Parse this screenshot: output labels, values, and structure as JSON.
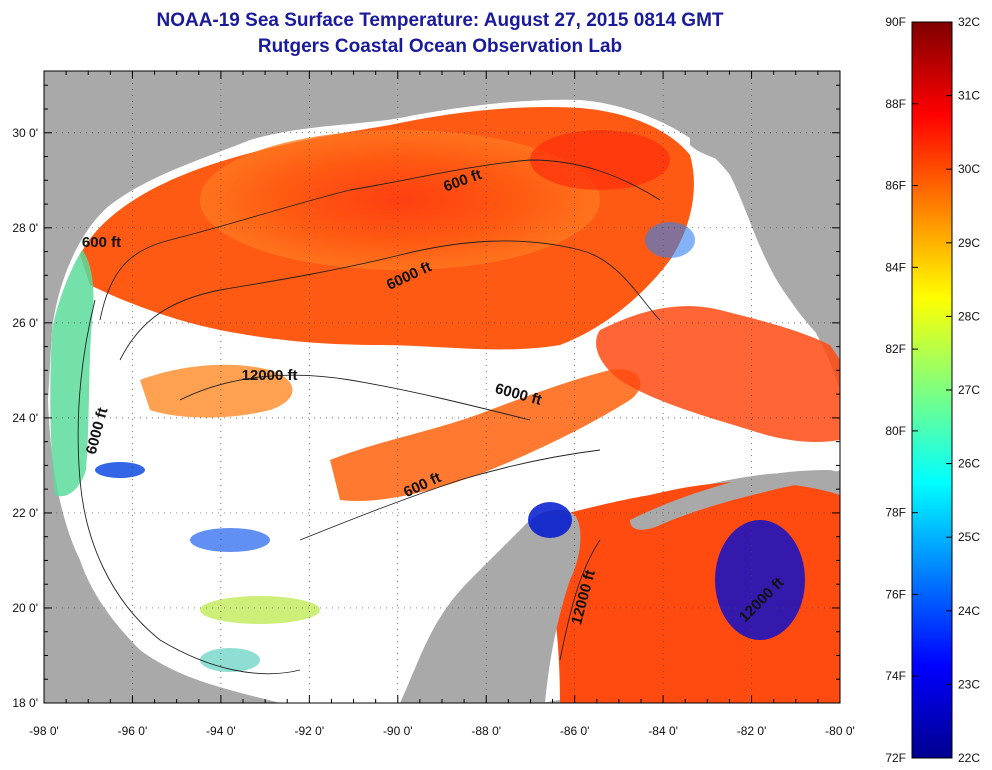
{
  "title": {
    "line1": "NOAA-19 Sea Surface Temperature:  August 27, 2015 0814 GMT",
    "line2": "Rutgers Coastal Ocean Observation Lab"
  },
  "map": {
    "lon_labels": [
      "-98 0'",
      "-96 0'",
      "-94 0'",
      "-92 0'",
      "-90 0'",
      "-88 0'",
      "-86 0'",
      "-84 0'",
      "-82 0'",
      "-80 0'"
    ],
    "lat_labels": [
      "18 0'",
      "20 0'",
      "22 0'",
      "24 0'",
      "26 0'",
      "28 0'",
      "30 0'"
    ],
    "lon_range": [
      -98,
      -80
    ],
    "lat_range": [
      18,
      31.3
    ],
    "contour_labels": [
      {
        "text": "600 ft",
        "lon": -96.7,
        "lat": 27.6,
        "rot": 0
      },
      {
        "text": "600 ft",
        "lon": -88.5,
        "lat": 28.9,
        "rot": -20
      },
      {
        "text": "6000 ft",
        "lon": -89.7,
        "lat": 26.9,
        "rot": -25
      },
      {
        "text": "12000 ft",
        "lon": -92.9,
        "lat": 24.8,
        "rot": 0
      },
      {
        "text": "6000 ft",
        "lon": -87.3,
        "lat": 24.4,
        "rot": 15
      },
      {
        "text": "6000 ft",
        "lon": -96.7,
        "lat": 23.7,
        "rot": -75
      },
      {
        "text": "600 ft",
        "lon": -89.4,
        "lat": 22.5,
        "rot": -25
      },
      {
        "text": "12000 ft",
        "lon": -85.7,
        "lat": 20.2,
        "rot": -75
      },
      {
        "text": "12000 ft",
        "lon": -81.7,
        "lat": 20.1,
        "rot": -45
      }
    ]
  },
  "colorbar": {
    "f_labels": [
      "90F",
      "88F",
      "86F",
      "84F",
      "82F",
      "80F",
      "78F",
      "76F",
      "74F",
      "72F"
    ],
    "c_labels": [
      "32C",
      "31C",
      "30C",
      "29C",
      "28C",
      "27C",
      "26C",
      "25C",
      "24C",
      "23C",
      "22C"
    ],
    "f_range": [
      72,
      90
    ],
    "c_range": [
      22,
      32
    ]
  },
  "colors": {
    "land": "#a9a9a9",
    "cloud": "#ffffff",
    "title": "#1a1a9c",
    "colormap": [
      "#00008f",
      "#0000ff",
      "#007fff",
      "#00ffff",
      "#7fff7f",
      "#ffff00",
      "#ff7f00",
      "#ff0000",
      "#7f0000"
    ]
  }
}
